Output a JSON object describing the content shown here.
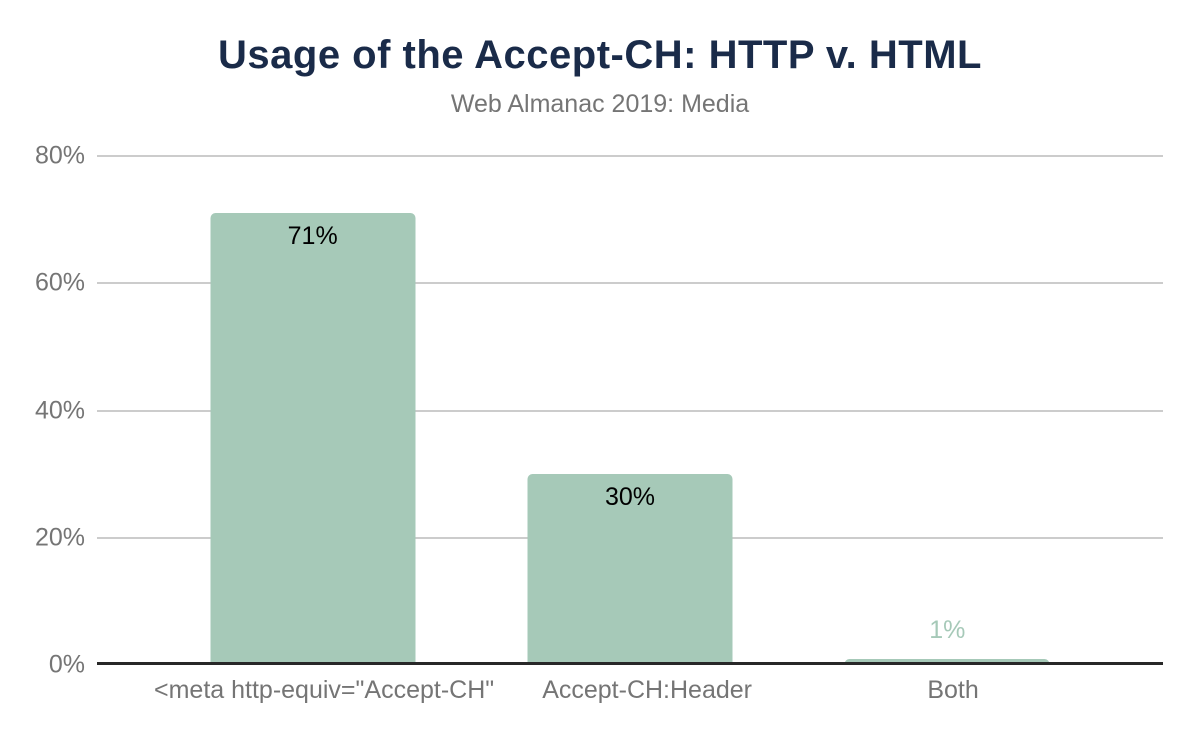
{
  "chart_data": {
    "type": "bar",
    "title": "Usage of the Accept-CH: HTTP v. HTML",
    "subtitle": "Web Almanac 2019: Media",
    "categories": [
      "<meta http-equiv=\"Accept-CH\"",
      "Accept-CH:Header",
      "Both"
    ],
    "values": [
      71,
      30,
      1
    ],
    "value_labels": [
      "71%",
      "30%",
      "1%"
    ],
    "xlabel": "",
    "ylabel": "",
    "ylim": [
      0,
      80
    ],
    "yticks": [
      0,
      20,
      40,
      60,
      80
    ],
    "ytick_labels": [
      "0%",
      "20%",
      "40%",
      "60%",
      "80%"
    ],
    "grid": true,
    "legend": false
  },
  "colors": {
    "title": "#1a2b49",
    "subtitle": "#757575",
    "bar": "#a6c9b8",
    "axis_line": "#282828",
    "gridline": "#cccccc",
    "tick_label": "#757575",
    "value_label_inside": "#000000",
    "value_label_outside": "#a6c9b8"
  }
}
